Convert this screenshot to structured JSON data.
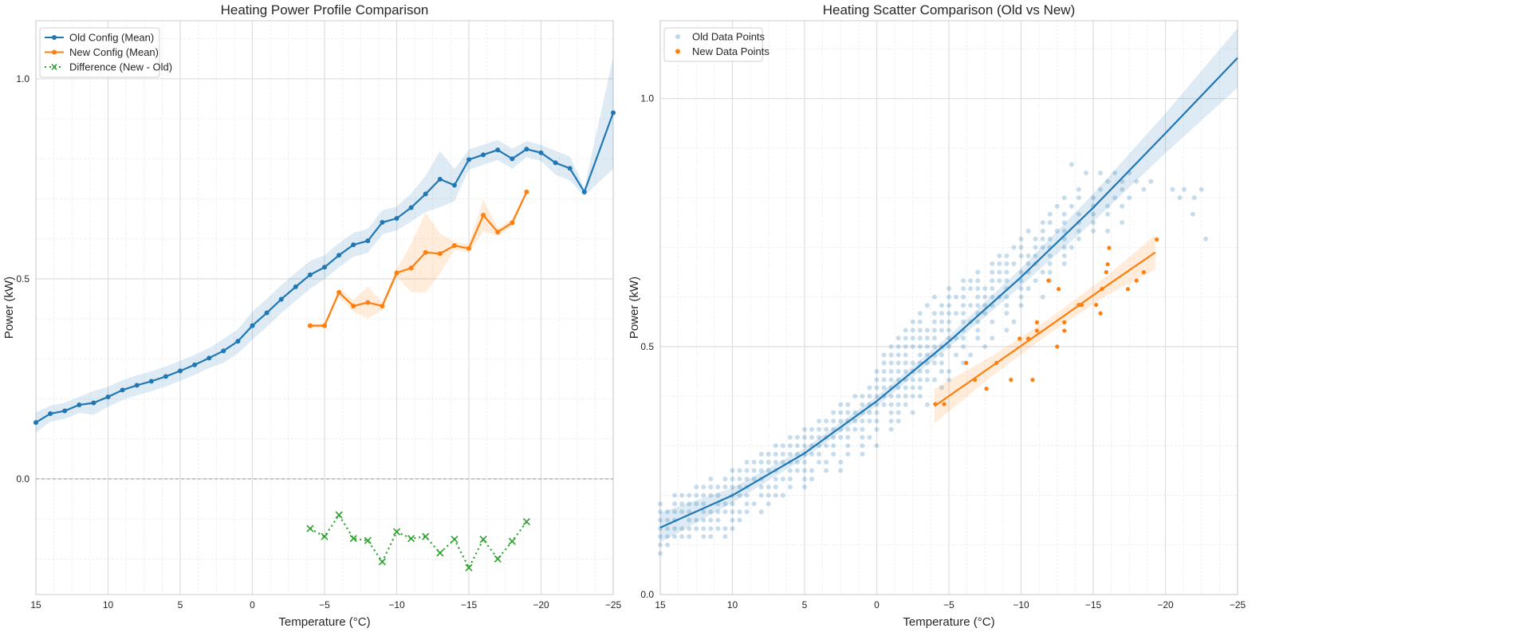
{
  "colors": {
    "old": "#1f77b4",
    "new": "#ff7f0e",
    "diff": "#2ca02c",
    "grid": "#dddddd",
    "zero_line": "#aaaaaa"
  },
  "chart_data": [
    {
      "type": "line",
      "title": "Heating Power Profile Comparison",
      "xlabel": "Temperature (°C)",
      "ylabel": "Power (kW)",
      "xlim": [
        15,
        -25
      ],
      "x_reversed": true,
      "ylim": [
        -0.289,
        1.145
      ],
      "xticks": [
        15,
        10,
        5,
        0,
        -5,
        -10,
        -15,
        -20,
        -25
      ],
      "xtick_labels": [
        "15",
        "10",
        "5",
        "0",
        "−5",
        "−10",
        "−15",
        "−20",
        "−25"
      ],
      "yticks": [
        0.0,
        0.5,
        1.0
      ],
      "ytick_labels": [
        "0.0",
        "0.5",
        "1.0"
      ],
      "grid": true,
      "zero_line": true,
      "legend": {
        "placement": "top-left",
        "entries": [
          "Old Config (Mean)",
          "New Config (Mean)",
          "Difference (New - Old)"
        ]
      },
      "series": [
        {
          "name": "Old Config (Mean)",
          "color": "#1f77b4",
          "marker": "circle",
          "x": [
            15,
            14,
            13,
            12,
            11,
            10,
            9,
            8,
            7,
            6,
            5,
            4,
            3,
            2,
            1,
            0,
            -1,
            -2,
            -3,
            -4,
            -5,
            -6,
            -7,
            -8,
            -9,
            -10,
            -11,
            -12,
            -13,
            -14,
            -15,
            -16,
            -17,
            -18,
            -19,
            -20,
            -21,
            -22,
            -23,
            -25
          ],
          "y": [
            0.141,
            0.163,
            0.17,
            0.185,
            0.19,
            0.205,
            0.222,
            0.234,
            0.244,
            0.256,
            0.27,
            0.285,
            0.302,
            0.32,
            0.344,
            0.383,
            0.415,
            0.449,
            0.48,
            0.51,
            0.529,
            0.559,
            0.585,
            0.595,
            0.641,
            0.651,
            0.678,
            0.712,
            0.749,
            0.734,
            0.798,
            0.81,
            0.822,
            0.8,
            0.824,
            0.815,
            0.79,
            0.776,
            0.717,
            0.915
          ],
          "ci_halfwidth": [
            0.025,
            0.02,
            0.02,
            0.02,
            0.03,
            0.025,
            0.025,
            0.025,
            0.025,
            0.025,
            0.025,
            0.025,
            0.025,
            0.03,
            0.03,
            0.035,
            0.035,
            0.035,
            0.035,
            0.035,
            0.03,
            0.03,
            0.03,
            0.03,
            0.03,
            0.03,
            0.035,
            0.045,
            0.07,
            0.04,
            0.025,
            0.025,
            0.025,
            0.025,
            0.02,
            0.02,
            0.03,
            0.03,
            0.01,
            0.14
          ]
        },
        {
          "name": "New Config (Mean)",
          "color": "#ff7f0e",
          "marker": "circle",
          "x": [
            -4,
            -5,
            -6,
            -7,
            -8,
            -9,
            -10,
            -11,
            -12,
            -13,
            -14,
            -15,
            -16,
            -17,
            -18,
            -19
          ],
          "y": [
            0.383,
            0.383,
            0.466,
            0.432,
            0.441,
            0.432,
            0.515,
            0.527,
            0.566,
            0.563,
            0.583,
            0.576,
            0.659,
            0.617,
            0.64,
            0.717
          ],
          "ci_halfwidth": [
            0.005,
            0.005,
            0.01,
            0.015,
            0.04,
            0.01,
            0.01,
            0.06,
            0.1,
            0.05,
            0.01,
            0.01,
            0.04,
            0.01,
            0.01,
            0.005
          ]
        },
        {
          "name": "Difference (New - Old)",
          "color": "#2ca02c",
          "marker": "x",
          "linestyle": "dotted",
          "x": [
            -4,
            -5,
            -6,
            -7,
            -8,
            -9,
            -10,
            -11,
            -12,
            -13,
            -14,
            -15,
            -16,
            -17,
            -18,
            -19
          ],
          "y": [
            -0.124,
            -0.144,
            -0.09,
            -0.149,
            -0.154,
            -0.207,
            -0.132,
            -0.149,
            -0.144,
            -0.185,
            -0.151,
            -0.222,
            -0.151,
            -0.2,
            -0.156,
            -0.107
          ]
        }
      ]
    },
    {
      "type": "scatter",
      "title": "Heating Scatter Comparison (Old vs New)",
      "xlabel": "Temperature (°C)",
      "ylabel": "Power (kW)",
      "xlim": [
        15,
        -25
      ],
      "x_reversed": true,
      "ylim": [
        0,
        1.157
      ],
      "xticks": [
        15,
        10,
        5,
        0,
        -5,
        -10,
        -15,
        -20,
        -25
      ],
      "xtick_labels": [
        "15",
        "10",
        "5",
        "0",
        "−5",
        "−10",
        "−15",
        "−20",
        "−25"
      ],
      "yticks": [
        0.0,
        0.5,
        1.0
      ],
      "ytick_labels": [
        "0.0",
        "0.5",
        "1.0"
      ],
      "grid": true,
      "legend": {
        "placement": "top-left",
        "entries": [
          "Old Data Points",
          "New Data Points"
        ]
      },
      "old_points_by_level": [
        {
          "y": 0.083,
          "x": [
            15
          ]
        },
        {
          "y": 0.1,
          "x": [
            15,
            14.5
          ]
        },
        {
          "y": 0.117,
          "x": [
            15,
            14.5,
            14,
            13.5,
            13,
            12,
            11.5,
            10.5
          ]
        },
        {
          "y": 0.133,
          "x": [
            15,
            14.5,
            14,
            13.5,
            13,
            12.5,
            12,
            11.5,
            11,
            10.5,
            10
          ]
        },
        {
          "y": 0.15,
          "x": [
            15,
            14.5,
            14,
            13,
            12.5,
            12,
            11.5,
            11,
            10,
            9.5
          ]
        },
        {
          "y": 0.167,
          "x": [
            15,
            14.5,
            14,
            13.5,
            13,
            12,
            11.5,
            11,
            10.5,
            10,
            9.5,
            9,
            8
          ]
        },
        {
          "y": 0.183,
          "x": [
            15,
            14,
            13.5,
            13,
            12.5,
            12,
            11,
            10.5,
            10,
            9,
            8.5,
            7.5
          ]
        },
        {
          "y": 0.2,
          "x": [
            14,
            13.5,
            13,
            12.5,
            12,
            11.5,
            11,
            10,
            9.5,
            9,
            8,
            7.5,
            7,
            6.5
          ]
        },
        {
          "y": 0.217,
          "x": [
            12.5,
            12,
            11.5,
            11,
            10.5,
            10,
            9.5,
            9,
            8,
            7.5,
            7,
            6,
            5
          ]
        },
        {
          "y": 0.233,
          "x": [
            11.5,
            10.5,
            10,
            9.5,
            9,
            8.5,
            8,
            7,
            6.5,
            6,
            5,
            4.5
          ]
        },
        {
          "y": 0.25,
          "x": [
            10,
            9.5,
            9,
            8.5,
            8,
            7.5,
            7,
            6,
            5.5,
            5,
            4.5,
            3.5,
            2.5
          ]
        },
        {
          "y": 0.267,
          "x": [
            9,
            8.5,
            8,
            7.5,
            7,
            6.5,
            6,
            5.5,
            5,
            4,
            3.5,
            2.5
          ]
        },
        {
          "y": 0.283,
          "x": [
            8,
            7.5,
            7,
            6.5,
            6,
            5.5,
            5,
            4.5,
            4,
            3,
            2,
            1
          ]
        },
        {
          "y": 0.3,
          "x": [
            7,
            6.5,
            6,
            5.5,
            5,
            4.5,
            4,
            3.5,
            3,
            2,
            1,
            0
          ]
        },
        {
          "y": 0.317,
          "x": [
            6,
            5.5,
            5,
            4.5,
            4,
            3.5,
            3,
            2.5,
            2,
            1,
            0.5
          ]
        },
        {
          "y": 0.333,
          "x": [
            5,
            4.5,
            4,
            3.5,
            3,
            2.5,
            2,
            1.5,
            1,
            0,
            -1
          ]
        },
        {
          "y": 0.35,
          "x": [
            4,
            3.5,
            3,
            2.5,
            2,
            1.5,
            1,
            0.5,
            0,
            -1,
            -1.5
          ]
        },
        {
          "y": 0.367,
          "x": [
            3,
            2.5,
            2,
            1.5,
            1,
            0.5,
            0,
            -1,
            -1.5,
            -2.5
          ]
        },
        {
          "y": 0.383,
          "x": [
            2.5,
            2,
            1,
            0.5,
            0,
            -0.5,
            -1,
            -1.5,
            -2,
            -3.5
          ]
        },
        {
          "y": 0.4,
          "x": [
            1.5,
            1,
            0.5,
            0,
            -0.5,
            -1,
            -1.5,
            -2,
            -2.5,
            -3
          ]
        },
        {
          "y": 0.417,
          "x": [
            0.5,
            0,
            -0.5,
            -1,
            -1.5,
            -2,
            -2.5,
            -3,
            -4.5
          ]
        },
        {
          "y": 0.433,
          "x": [
            0,
            -0.5,
            -1,
            -1.5,
            -2,
            -2.5,
            -3,
            -3.5,
            -4,
            -5
          ]
        },
        {
          "y": 0.45,
          "x": [
            0,
            -0.5,
            -1,
            -1.5,
            -2,
            -2.5,
            -3,
            -3.5,
            -4.5,
            -5
          ]
        },
        {
          "y": 0.467,
          "x": [
            -0.5,
            -1,
            -1.5,
            -2,
            -2.5,
            -3,
            -3.5,
            -4,
            -4.5,
            -6
          ]
        },
        {
          "y": 0.483,
          "x": [
            -0.5,
            -1,
            -1.5,
            -2,
            -3,
            -3.5,
            -4,
            -4.5,
            -5.5,
            -6.5
          ]
        },
        {
          "y": 0.5,
          "x": [
            -1,
            -1.5,
            -2,
            -2.5,
            -3,
            -3.5,
            -4,
            -4.5,
            -5,
            -6,
            -7.5
          ]
        },
        {
          "y": 0.517,
          "x": [
            -1.5,
            -2,
            -2.5,
            -3,
            -3.5,
            -4,
            -5,
            -5.5,
            -6,
            -7,
            -8
          ]
        },
        {
          "y": 0.533,
          "x": [
            -2,
            -2.5,
            -3,
            -3.5,
            -4,
            -4.5,
            -5,
            -6,
            -7,
            -9
          ]
        },
        {
          "y": 0.55,
          "x": [
            -2.5,
            -3,
            -4,
            -4.5,
            -5,
            -6,
            -6.5,
            -7,
            -8,
            -9.5
          ]
        },
        {
          "y": 0.567,
          "x": [
            -3,
            -4,
            -4.5,
            -5,
            -5.5,
            -6,
            -7,
            -7.5,
            -9
          ]
        },
        {
          "y": 0.583,
          "x": [
            -3.5,
            -4.5,
            -5,
            -6,
            -6.5,
            -7,
            -7.5,
            -8,
            -9,
            -10
          ]
        },
        {
          "y": 0.6,
          "x": [
            -4,
            -5,
            -5.5,
            -6,
            -7,
            -7.5,
            -8,
            -8.5,
            -9,
            -10,
            -11.5
          ]
        },
        {
          "y": 0.617,
          "x": [
            -5,
            -6,
            -6.5,
            -7,
            -7.5,
            -8,
            -9,
            -10,
            -10.5
          ]
        },
        {
          "y": 0.633,
          "x": [
            -6,
            -6.5,
            -7,
            -8,
            -8.5,
            -9,
            -10,
            -11,
            -12
          ]
        },
        {
          "y": 0.65,
          "x": [
            -7,
            -8,
            -8.5,
            -9,
            -10,
            -10.5,
            -11.5,
            -12
          ]
        },
        {
          "y": 0.667,
          "x": [
            -8,
            -8.5,
            -9,
            -9.5,
            -10.5,
            -11,
            -12,
            -13
          ]
        },
        {
          "y": 0.683,
          "x": [
            -8.5,
            -9,
            -10,
            -10.5,
            -11,
            -12,
            -13
          ]
        },
        {
          "y": 0.7,
          "x": [
            -9.5,
            -10,
            -11,
            -11.5,
            -12,
            -13,
            -13.5
          ]
        },
        {
          "y": 0.717,
          "x": [
            -10,
            -11,
            -11.5,
            -12,
            -13,
            -14,
            -22.8
          ]
        },
        {
          "y": 0.733,
          "x": [
            -10.5,
            -11.5,
            -12.5,
            -13,
            -14,
            -15,
            -16
          ]
        },
        {
          "y": 0.75,
          "x": [
            -11.5,
            -12,
            -13,
            -14,
            -15,
            -17
          ]
        },
        {
          "y": 0.767,
          "x": [
            -12,
            -13,
            -14,
            -15,
            -16,
            -21.9
          ]
        },
        {
          "y": 0.783,
          "x": [
            -12.5,
            -13.5,
            -15,
            -16,
            -17
          ]
        },
        {
          "y": 0.8,
          "x": [
            -13,
            -14,
            -15,
            -16.5,
            -17.5,
            -21,
            -22
          ]
        },
        {
          "y": 0.817,
          "x": [
            -14,
            -15.5,
            -17,
            -18.5,
            -20.5,
            -21.3,
            -22.5
          ]
        },
        {
          "y": 0.833,
          "x": [
            -16,
            -17,
            -18,
            -19
          ]
        },
        {
          "y": 0.85,
          "x": [
            -14.5,
            -15.5,
            -16.5,
            -17.5
          ]
        },
        {
          "y": 0.867,
          "x": [
            -13.5
          ]
        }
      ],
      "new_points": [
        [
          -4.06,
          0.384
        ],
        [
          -4.67,
          0.384
        ],
        [
          -6.2,
          0.467
        ],
        [
          -6.8,
          0.433
        ],
        [
          -7.6,
          0.415
        ],
        [
          -8.3,
          0.467
        ],
        [
          -9.3,
          0.433
        ],
        [
          -9.9,
          0.516
        ],
        [
          -10.5,
          0.516
        ],
        [
          -10.8,
          0.433
        ],
        [
          -11.1,
          0.549
        ],
        [
          -11.1,
          0.532
        ],
        [
          -11.9,
          0.633
        ],
        [
          -12.5,
          0.5
        ],
        [
          -12.6,
          0.616
        ],
        [
          -13.0,
          0.549
        ],
        [
          -13.0,
          0.532
        ],
        [
          -14.0,
          0.584
        ],
        [
          -14.2,
          0.584
        ],
        [
          -15.2,
          0.584
        ],
        [
          -15.5,
          0.567
        ],
        [
          -15.6,
          0.616
        ],
        [
          -15.9,
          0.65
        ],
        [
          -16.0,
          0.666
        ],
        [
          -16.1,
          0.699
        ],
        [
          -17.4,
          0.616
        ],
        [
          -18.0,
          0.633
        ],
        [
          -18.5,
          0.65
        ],
        [
          -19.4,
          0.716
        ]
      ],
      "fits": [
        {
          "series": "Old Data Points",
          "color": "#1f77b4",
          "x": [
            15,
            10,
            5,
            0,
            -5,
            -10,
            -15,
            -20,
            -25
          ],
          "y": [
            0.135,
            0.2,
            0.285,
            0.39,
            0.51,
            0.64,
            0.78,
            0.93,
            1.082
          ],
          "ci_halfwidth": [
            0.03,
            0.015,
            0.01,
            0.01,
            0.012,
            0.018,
            0.028,
            0.04,
            0.06
          ]
        },
        {
          "series": "New Data Points",
          "color": "#ff7f0e",
          "x": [
            -4,
            -8,
            -12,
            -16,
            -19.3
          ],
          "y": [
            0.38,
            0.461,
            0.542,
            0.624,
            0.69
          ],
          "ci_halfwidth": [
            0.035,
            0.02,
            0.015,
            0.02,
            0.035
          ]
        }
      ]
    }
  ]
}
